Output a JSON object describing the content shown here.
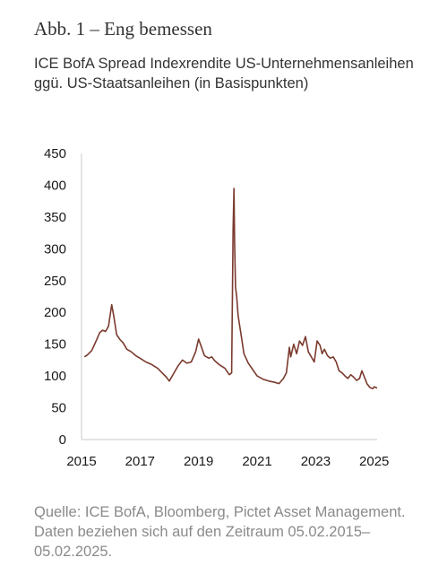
{
  "header": {
    "title": "Abb. 1 – Eng bemessen",
    "subtitle": "ICE BofA Spread Indexrendite US-Unternehmensanleihen ggü. US-Staatsanleihen (in Basispunkten)"
  },
  "footer": {
    "source": "Quelle: ICE BofA, Bloomberg, Pictet Asset Management. Daten beziehen sich auf den Zeitraum 05.02.2015–05.02.2025."
  },
  "colors": {
    "line": "#7b3a2e",
    "axis": "#c8c8c8"
  },
  "chart_data": {
    "type": "line",
    "title": "Abb. 1 – Eng bemessen",
    "xlabel": "",
    "ylabel": "",
    "xlim": [
      2015.0,
      2025.1
    ],
    "ylim": [
      0,
      450
    ],
    "xticks": [
      2015,
      2017,
      2019,
      2021,
      2023,
      2025
    ],
    "xtick_labels": [
      "2015",
      "2017",
      "2019",
      "2021",
      "2023",
      "2025"
    ],
    "yticks": [
      0,
      50,
      100,
      150,
      200,
      250,
      300,
      350,
      400,
      450
    ],
    "ytick_labels": [
      "0",
      "50",
      "100",
      "150",
      "200",
      "250",
      "300",
      "350",
      "400",
      "450"
    ],
    "grid": false,
    "legend": "none",
    "series": [
      {
        "name": "",
        "x": [
          2015.1,
          2015.2,
          2015.35,
          2015.5,
          2015.62,
          2015.72,
          2015.82,
          2015.92,
          2016.03,
          2016.1,
          2016.2,
          2016.3,
          2016.42,
          2016.55,
          2016.7,
          2016.85,
          2017.0,
          2017.2,
          2017.4,
          2017.6,
          2017.75,
          2017.9,
          2018.0,
          2018.1,
          2018.2,
          2018.3,
          2018.45,
          2018.6,
          2018.75,
          2018.9,
          2019.0,
          2019.1,
          2019.2,
          2019.35,
          2019.45,
          2019.55,
          2019.7,
          2019.9,
          2020.05,
          2020.13,
          2020.18,
          2020.21,
          2020.23,
          2020.26,
          2020.3,
          2020.35,
          2020.45,
          2020.55,
          2020.7,
          2020.85,
          2021.0,
          2021.2,
          2021.4,
          2021.6,
          2021.75,
          2021.9,
          2022.0,
          2022.1,
          2022.15,
          2022.25,
          2022.35,
          2022.45,
          2022.55,
          2022.65,
          2022.75,
          2022.85,
          2022.95,
          2023.05,
          2023.15,
          2023.22,
          2023.3,
          2023.4,
          2023.5,
          2023.6,
          2023.7,
          2023.8,
          2023.9,
          2024.0,
          2024.1,
          2024.2,
          2024.3,
          2024.4,
          2024.5,
          2024.58,
          2024.65,
          2024.75,
          2024.85,
          2024.95,
          2025.0,
          2025.05,
          2025.1
        ],
        "y": [
          130,
          133,
          140,
          155,
          168,
          172,
          170,
          178,
          212,
          195,
          165,
          158,
          152,
          142,
          138,
          132,
          128,
          122,
          118,
          112,
          105,
          98,
          92,
          100,
          108,
          116,
          125,
          120,
          122,
          138,
          158,
          145,
          132,
          128,
          130,
          124,
          118,
          112,
          102,
          105,
          330,
          395,
          310,
          240,
          225,
          195,
          165,
          135,
          120,
          110,
          100,
          95,
          92,
          90,
          88,
          96,
          105,
          145,
          130,
          150,
          135,
          155,
          148,
          162,
          138,
          130,
          122,
          155,
          148,
          135,
          142,
          132,
          128,
          130,
          122,
          108,
          105,
          100,
          96,
          102,
          98,
          93,
          96,
          108,
          100,
          88,
          82,
          80,
          83,
          82,
          81
        ]
      }
    ]
  }
}
